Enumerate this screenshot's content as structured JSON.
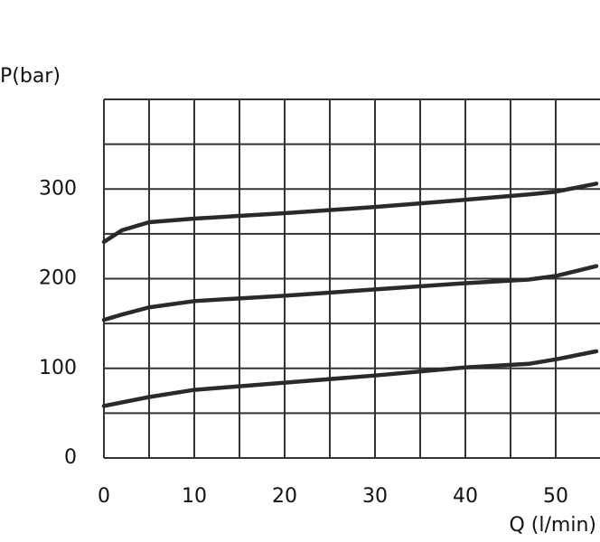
{
  "chart_data": {
    "type": "line",
    "y_label": "P(bar)",
    "x_label": "Q (l/min)",
    "xlim": [
      0,
      55
    ],
    "ylim": [
      0,
      400
    ],
    "xticks": [
      0,
      10,
      20,
      30,
      40,
      50
    ],
    "yticks": [
      0,
      100,
      200,
      300
    ],
    "x_grid_lines": [
      0,
      5,
      10,
      15,
      20,
      25,
      30,
      35,
      40,
      45,
      50,
      55
    ],
    "y_grid_lines": [
      0,
      50,
      100,
      150,
      200,
      250,
      300,
      350,
      400
    ],
    "grid": true,
    "x": [
      0,
      2,
      5,
      10,
      20,
      30,
      40,
      47,
      50,
      54.5
    ],
    "series": [
      {
        "color": "#2a2a2a",
        "values": [
          241,
          254,
          263,
          267,
          273,
          280,
          288,
          294,
          297,
          306
        ]
      },
      {
        "color": "#2a2a2a",
        "values": [
          154,
          160,
          168,
          175,
          181,
          188,
          195,
          199,
          203,
          214
        ]
      },
      {
        "color": "#2a2a2a",
        "values": [
          58,
          62,
          68,
          76,
          84,
          92,
          101,
          105,
          110,
          119
        ]
      }
    ]
  }
}
